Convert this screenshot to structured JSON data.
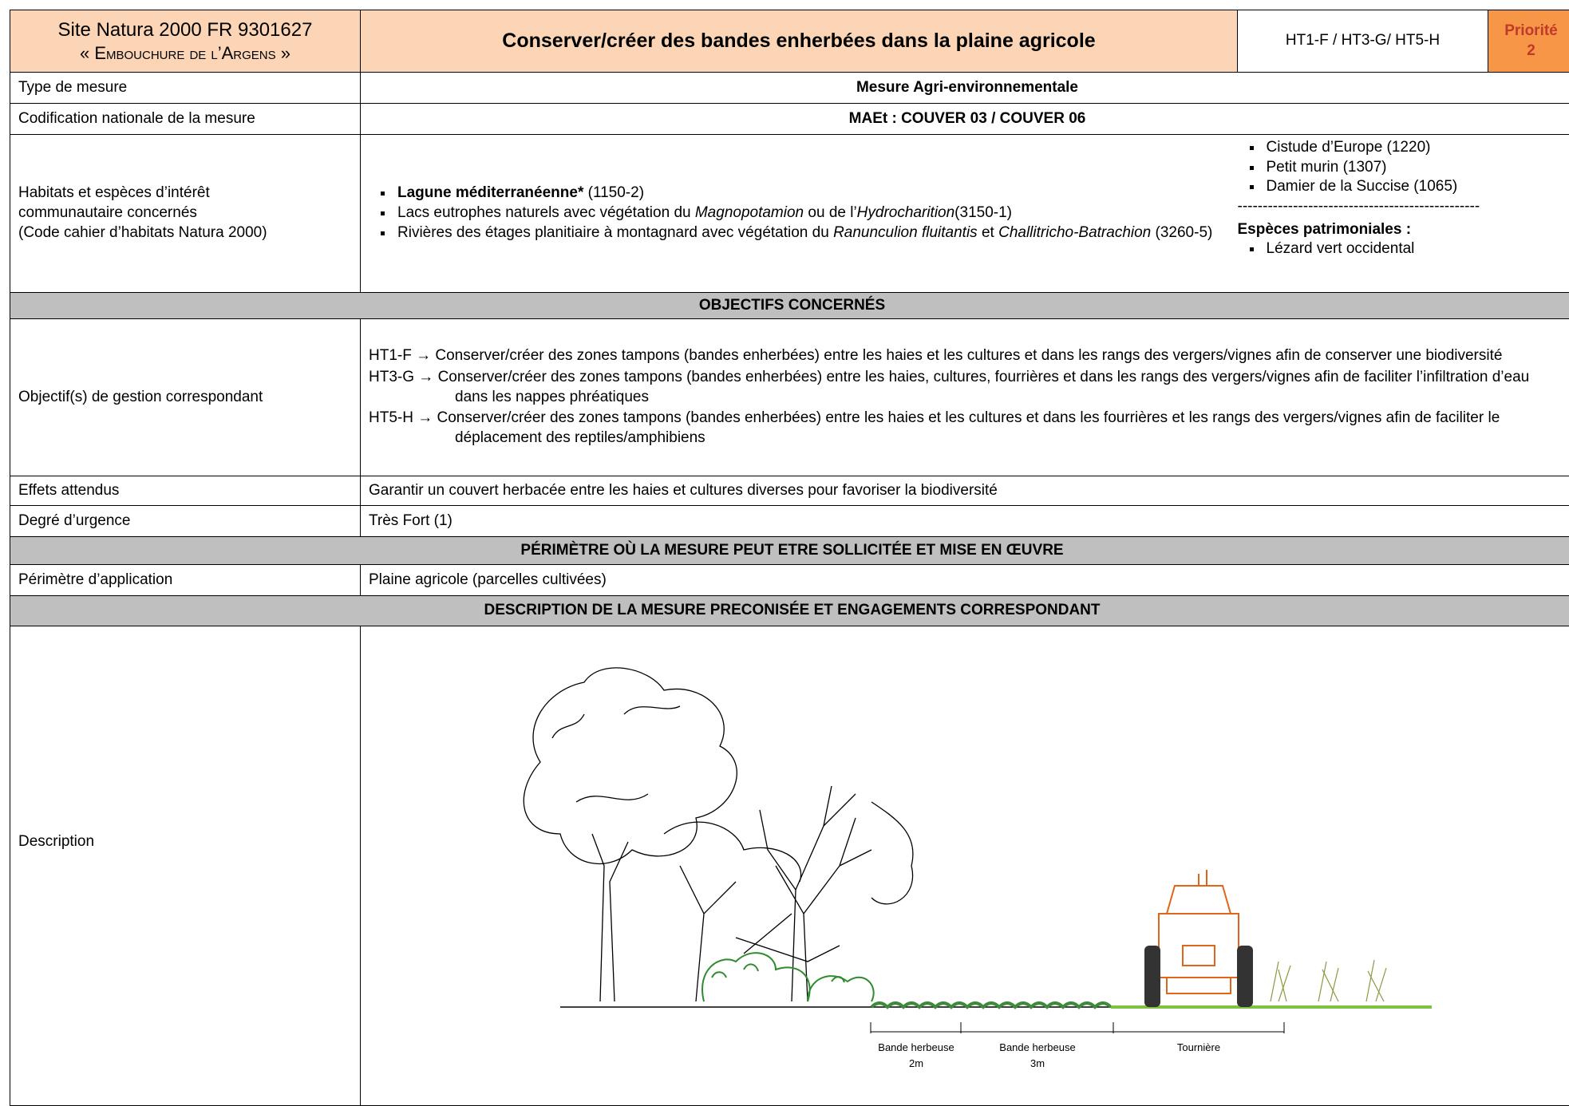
{
  "header": {
    "site_id": "Site Natura 2000 FR 9301627",
    "site_name": "« Embouchure de l’Argens »",
    "title": "Conserver/créer des bandes enherbées dans la plaine agricole",
    "codes": "HT1-F / HT3-G/ HT5-H",
    "priority_label": "Priorité",
    "priority": "2"
  },
  "rows": {
    "type": {
      "label": "Type de mesure",
      "value": "Mesure Agri-environnementale"
    },
    "codification": {
      "label": "Codification nationale de la mesure",
      "value": "MAEt : COUVER 03 / COUVER 06"
    },
    "habitats": {
      "label_lines": [
        "Habitats et espèces d’intérêt",
        "communautaire concernés",
        "(Code cahier d’habitats Natura 2000)"
      ],
      "habitats": [
        [
          {
            "text": "Lagune méditerranéenne*",
            "bold": true
          },
          {
            "text": " (1150-2)"
          }
        ],
        [
          {
            "text": "Lacs eutrophes naturels avec végétation du "
          },
          {
            "text": "Magnopotamion",
            "italic": true
          },
          {
            "text": " ou de l’"
          },
          {
            "text": "Hydrocharition",
            "italic": true
          },
          {
            "text": "(3150-1)"
          }
        ],
        [
          {
            "text": "Rivières des étages planitiaire à montagnard avec végétation du "
          },
          {
            "text": "Ranunculion fluitantis",
            "italic": true
          },
          {
            "text": " et "
          },
          {
            "text": "Challitricho-Batrachion",
            "italic": true
          },
          {
            "text": " (3260-5)"
          }
        ]
      ],
      "species": [
        "Cistude d’Europe (1220)",
        "Petit murin (1307)",
        "Damier de la Succise  (1065)"
      ],
      "separator": "------------------------------------------------",
      "heritage_title": "Espèces patrimoniales :",
      "heritage": [
        "Lézard vert occidental"
      ]
    },
    "objectives_header": "OBJECTIFS CONCERNÉS",
    "objectives": {
      "label": "Objectif(s) de gestion correspondant",
      "arrow": "→",
      "items": [
        {
          "code": "HT1-F",
          "text": "Conserver/créer des zones tampons (bandes enherbées) entre les haies et les cultures et dans les rangs des vergers/vignes afin de conserver une biodiversité"
        },
        {
          "code": "HT3-G",
          "text": "Conserver/créer des zones tampons (bandes enherbées) entre les haies, cultures, fourrières et dans les rangs des vergers/vignes afin de faciliter l’infiltration d’eau dans les nappes phréatiques"
        },
        {
          "code": "HT5-H",
          "text": "Conserver/créer des zones tampons (bandes enherbées) entre les haies et les cultures et dans les fourrières et les rangs des vergers/vignes afin de faciliter le déplacement des reptiles/amphibiens"
        }
      ]
    },
    "effects": {
      "label": "Effets attendus",
      "value": "Garantir un couvert herbacée entre les haies et cultures diverses pour favoriser la biodiversité"
    },
    "urgency": {
      "label": "Degré d’urgence",
      "value": "Très Fort (1)"
    },
    "perimeter_header": "PÉRIMÈTRE OÙ LA MESURE PEUT ETRE SOLLICITÉE ET MISE EN ŒUVRE",
    "perimeter": {
      "label": "Périmètre d’application",
      "value": "Plaine agricole (parcelles cultivées)"
    },
    "description_header": "DESCRIPTION DE LA MESURE PRECONISÉE ET ENGAGEMENTS CORRESPONDANT",
    "description": {
      "label": "Description",
      "figure_labels": [
        {
          "name": "Bande herbeuse",
          "width": "2m"
        },
        {
          "name": "Bande herbeuse",
          "width": "3m"
        },
        {
          "name": "Tournière"
        }
      ]
    }
  }
}
